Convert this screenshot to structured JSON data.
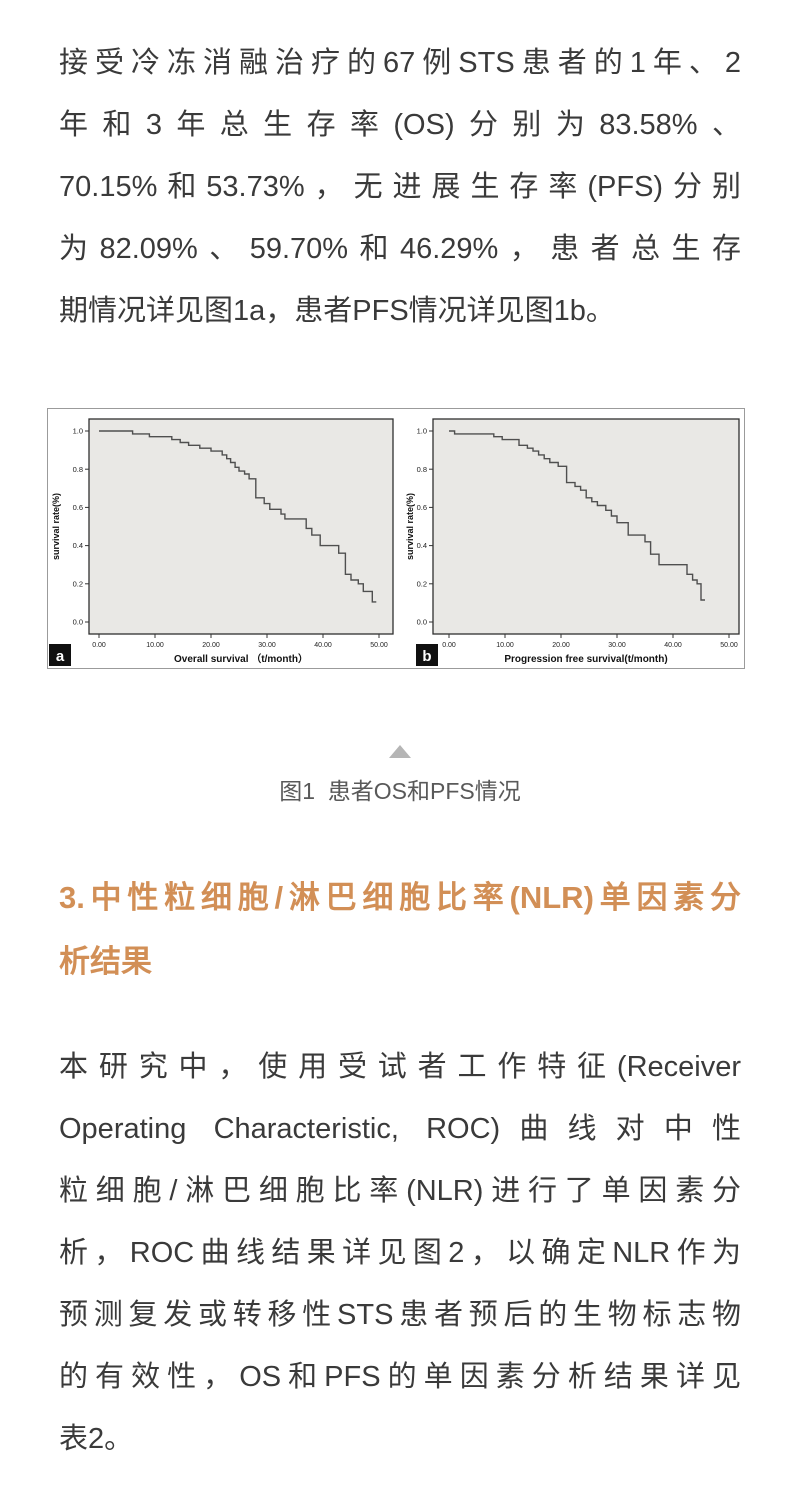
{
  "page": {
    "background": "#ffffff",
    "text_color": "#3a3a3a"
  },
  "paragraph1": {
    "lines": [
      "接受冷冻消融治疗的67例STS患者的1年、2",
      "年和3年总生存率(OS)分别为83.58%、",
      "70.15%和53.73%，无进展生存率(PFS)分别",
      "为82.09%、59.70%和46.29%，患者总生存",
      "期情况详见图1a，患者PFS情况详见图1b。"
    ]
  },
  "figure": {
    "caption": "图1  患者OS和PFS情况",
    "collapse_icon": "triangle-up-icon",
    "triangle_color": "#b5b5b5",
    "border_color": "#9b9b9b"
  },
  "section_heading": {
    "color": "#d28f56",
    "lines": [
      "3.中性粒细胞/淋巴细胞比率(NLR)单因素分",
      "析结果"
    ]
  },
  "paragraph2": {
    "lines": [
      "本研究中，使用受试者工作特征(Receiver",
      "Operating Characteristic, ROC)曲线对中性",
      "粒细胞/淋巴细胞比率(NLR)进行了单因素分",
      "析，ROC曲线结果详见图2，以确定NLR作为",
      "预测复发或转移性STS患者预后的生物标志物",
      "的有效性，OS和PFS的单因素分析结果详见",
      "表2。"
    ]
  },
  "chart_data": [
    {
      "type": "line",
      "subtype": "kaplan-meier-step",
      "panel_label": "a",
      "xlabel": "Overall survival （t/month）",
      "ylabel": "survival rate(%)",
      "xlim": [
        0,
        50
      ],
      "ylim": [
        0,
        1
      ],
      "xticks": [
        0,
        10,
        20,
        30,
        40,
        50
      ],
      "xtick_labels": [
        "0.00",
        "10.00",
        "20.00",
        "30.00",
        "40.00",
        "50.00"
      ],
      "yticks": [
        0.0,
        0.2,
        0.4,
        0.6,
        0.8,
        1.0
      ],
      "ytick_labels": [
        "0.0",
        "0.2",
        "0.4",
        "0.6",
        "0.8",
        "1.0"
      ],
      "grid": false,
      "legend": "none",
      "plot_bg": "#e9e8e5",
      "frame_color": "#2f2f2f",
      "line_color": "#4f4f4f",
      "series": [
        {
          "name": "Overall survival",
          "steps": [
            [
              0,
              1.0
            ],
            [
              6,
              0.985
            ],
            [
              9,
              0.97
            ],
            [
              13,
              0.955
            ],
            [
              14.5,
              0.94
            ],
            [
              16,
              0.925
            ],
            [
              18,
              0.91
            ],
            [
              20,
              0.895
            ],
            [
              22,
              0.875
            ],
            [
              22.8,
              0.855
            ],
            [
              23.5,
              0.835
            ],
            [
              24.3,
              0.81
            ],
            [
              25,
              0.79
            ],
            [
              26,
              0.775
            ],
            [
              26.8,
              0.75
            ],
            [
              28,
              0.65
            ],
            [
              29.5,
              0.62
            ],
            [
              30.5,
              0.59
            ],
            [
              32.5,
              0.565
            ],
            [
              33.2,
              0.54
            ],
            [
              37,
              0.49
            ],
            [
              38,
              0.455
            ],
            [
              39.5,
              0.4
            ],
            [
              42.8,
              0.36
            ],
            [
              44,
              0.25
            ],
            [
              45,
              0.22
            ],
            [
              46.3,
              0.2
            ],
            [
              47.2,
              0.16
            ],
            [
              48.8,
              0.105
            ]
          ]
        }
      ]
    },
    {
      "type": "line",
      "subtype": "kaplan-meier-step",
      "panel_label": "b",
      "xlabel": "Progression free survival(t/month)",
      "ylabel": "survival rate(%)",
      "xlim": [
        0,
        50
      ],
      "ylim": [
        0,
        1
      ],
      "xticks": [
        0,
        10,
        20,
        30,
        40,
        50
      ],
      "xtick_labels": [
        "0.00",
        "10.00",
        "20.00",
        "30.00",
        "40.00",
        "50.00"
      ],
      "yticks": [
        0.0,
        0.2,
        0.4,
        0.6,
        0.8,
        1.0
      ],
      "ytick_labels": [
        "0.0",
        "0.2",
        "0.4",
        "0.6",
        "0.8",
        "1.0"
      ],
      "grid": false,
      "legend": "none",
      "plot_bg": "#e9e8e5",
      "frame_color": "#2f2f2f",
      "line_color": "#4f4f4f",
      "series": [
        {
          "name": "Progression free survival",
          "steps": [
            [
              0,
              1.0
            ],
            [
              1,
              0.985
            ],
            [
              8,
              0.97
            ],
            [
              9.5,
              0.955
            ],
            [
              12.5,
              0.925
            ],
            [
              14,
              0.91
            ],
            [
              15,
              0.895
            ],
            [
              16,
              0.875
            ],
            [
              17,
              0.855
            ],
            [
              18,
              0.835
            ],
            [
              19.5,
              0.815
            ],
            [
              21,
              0.73
            ],
            [
              22.5,
              0.71
            ],
            [
              23.5,
              0.69
            ],
            [
              24.5,
              0.65
            ],
            [
              25.5,
              0.63
            ],
            [
              26.5,
              0.61
            ],
            [
              28,
              0.585
            ],
            [
              29,
              0.555
            ],
            [
              30,
              0.52
            ],
            [
              32,
              0.455
            ],
            [
              35,
              0.42
            ],
            [
              36,
              0.355
            ],
            [
              37.5,
              0.3
            ],
            [
              42.5,
              0.25
            ],
            [
              43.5,
              0.22
            ],
            [
              44.3,
              0.2
            ],
            [
              45,
              0.115
            ]
          ]
        }
      ]
    }
  ]
}
